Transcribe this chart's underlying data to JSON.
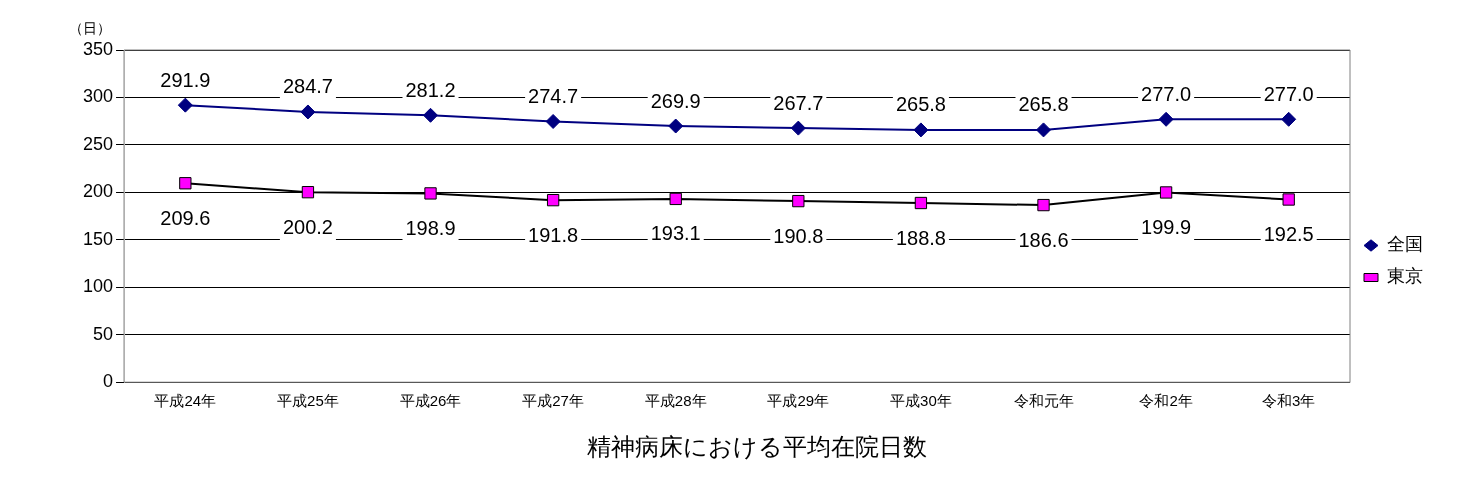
{
  "chart_data": {
    "type": "line",
    "title": "精神病床における平均在院日数",
    "ylabel": "（日）",
    "categories": [
      "平成24年",
      "平成25年",
      "平成26年",
      "平成27年",
      "平成28年",
      "平成29年",
      "平成30年",
      "令和元年",
      "令和2年",
      "令和3年"
    ],
    "series": [
      {
        "name": "全国",
        "color": "#000080",
        "marker": "diamond",
        "values": [
          291.9,
          284.7,
          281.2,
          274.7,
          269.9,
          267.7,
          265.8,
          265.8,
          277.0,
          277.0
        ],
        "value_labels": [
          "291.9",
          "284.7",
          "281.2",
          "274.7",
          "269.9",
          "267.7",
          "265.8",
          "265.8",
          "277.0",
          "277.0"
        ]
      },
      {
        "name": "東京",
        "color": "#ff00ff",
        "marker": "square",
        "values": [
          209.6,
          200.2,
          198.9,
          191.8,
          193.1,
          190.8,
          188.8,
          186.6,
          199.9,
          192.5
        ],
        "value_labels": [
          "209.6",
          "200.2",
          "198.9",
          "191.8",
          "193.1",
          "190.8",
          "188.8",
          "186.6",
          "199.9",
          "192.5"
        ]
      }
    ],
    "ylim": [
      0,
      350
    ],
    "yticks": [
      0,
      50,
      100,
      150,
      200,
      250,
      300,
      350
    ],
    "grid": "y",
    "legend": "right"
  }
}
